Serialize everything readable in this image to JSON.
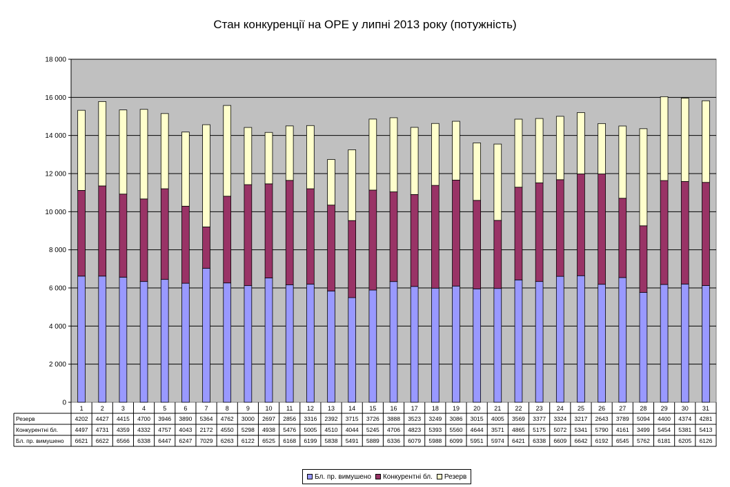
{
  "chart_data": {
    "type": "bar",
    "stacked": true,
    "title": "Стан конкуренції на ОРЕ  у липні 2013 року (потужність)",
    "categories": [
      "1",
      "2",
      "3",
      "4",
      "5",
      "6",
      "7",
      "8",
      "9",
      "10",
      "11",
      "12",
      "13",
      "14",
      "15",
      "16",
      "17",
      "18",
      "19",
      "20",
      "21",
      "22",
      "23",
      "24",
      "25",
      "26",
      "27",
      "28",
      "29",
      "30",
      "31"
    ],
    "ylim": [
      0,
      18000
    ],
    "yticks": [
      "0",
      "2 000",
      "4 000",
      "6 000",
      "8 000",
      "10 000",
      "12 000",
      "14 000",
      "16 000",
      "18 000"
    ],
    "grid": true,
    "legend_position": "bottom",
    "series": [
      {
        "name": "Бл. пр. вимушено",
        "color": "#9999ff",
        "values": [
          6621,
          6622,
          6566,
          6338,
          6447,
          6247,
          7029,
          6263,
          6122,
          6525,
          6168,
          6199,
          5838,
          5491,
          5889,
          6336,
          6079,
          5988,
          6099,
          5951,
          5974,
          6421,
          6338,
          6609,
          6642,
          6192,
          6545,
          5762,
          6181,
          6205,
          6126
        ]
      },
      {
        "name": "Конкурентні бл.",
        "color": "#993366",
        "values": [
          4497,
          4731,
          4359,
          4332,
          4757,
          4043,
          2172,
          4550,
          5298,
          4938,
          5476,
          5005,
          4510,
          4044,
          5245,
          4706,
          4823,
          5393,
          5560,
          4644,
          3571,
          4865,
          5175,
          5072,
          5341,
          5790,
          4161,
          3499,
          5454,
          5381,
          5413
        ]
      },
      {
        "name": "Резерв",
        "color": "#ffffcc",
        "values": [
          4202,
          4427,
          4415,
          4700,
          3946,
          3890,
          5364,
          4762,
          3000,
          2697,
          2856,
          3316,
          2392,
          3715,
          3726,
          3888,
          3523,
          3249,
          3086,
          3015,
          4005,
          3569,
          3377,
          3324,
          3217,
          2643,
          3789,
          5094,
          4400,
          4374,
          4281
        ]
      }
    ],
    "table_row_order": [
      2,
      1,
      0
    ],
    "colors": {
      "plot_background": "#c0c0c0",
      "grid": "#000000"
    }
  }
}
